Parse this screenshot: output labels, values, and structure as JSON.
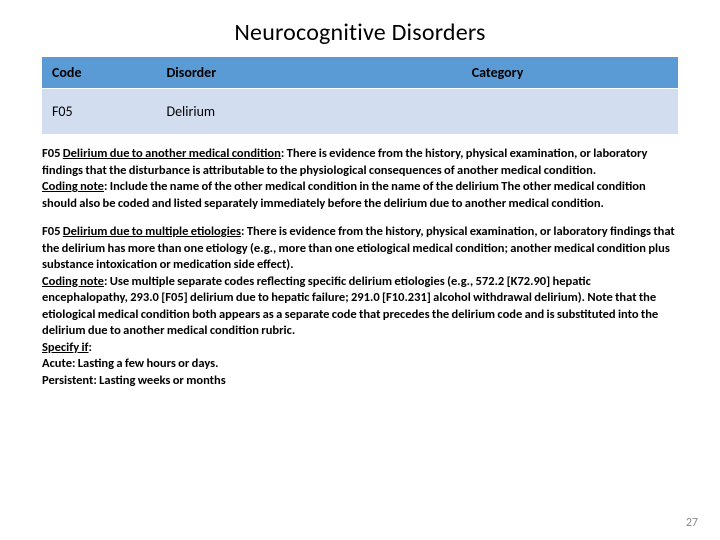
{
  "title": "Neurocognitive Disorders",
  "table": {
    "columns": [
      "Code",
      "Disorder",
      "Category"
    ],
    "row": {
      "code": "F05",
      "disorder": "Delirium",
      "category": ""
    },
    "header_bg": "#5b9bd5",
    "header_fg": "#000000",
    "data_bg": "#d2deef",
    "font_size_header": 14,
    "font_size_data": 14
  },
  "block1": {
    "lead_code": "F05",
    "lead_u": "Delirium due to another medical condition",
    "lead_rest": ": There is evidence from the history, physical examination, or laboratory findings that the disturbance is attributable to the physiological consequences of another medical condition.",
    "coding_u": "Coding note",
    "coding_rest": ": Include the name of the other medical condition in the name of the delirium The other medical condition should also be coded and listed separately immediately before the delirium due to another medical condition."
  },
  "block2": {
    "lead_code": "F05",
    "lead_u": "Delirium due to multiple etiologies",
    "lead_rest": ": There is evidence from the history, physical examination, or laboratory findings that the delirium has more than one etiology (e.g., more than one etiological medical condition; another medical condition plus substance intoxication or medication side effect).",
    "coding_u": "Coding note",
    "coding_rest": ": Use multiple separate codes reflecting specific delirium etiologies (e.g., 572.2 [K72.90] hepatic encephalopathy, 293.0 [F05] delirium due to hepatic failure; 291.0 [F10.231] alcohol withdrawal delirium). Note that the etiological medical condition both appears as a separate code that precedes the delirium code and is substituted into the delirium due to another medical condition rubric.",
    "specify_u": "Specify if",
    "specify_colon": ":",
    "acute": "Acute: Lasting a few hours or days.",
    "persistent": "Persistent: Lasting weeks or months"
  },
  "page_number": "27",
  "body_font_size": 12.5,
  "body_font_weight": 700
}
